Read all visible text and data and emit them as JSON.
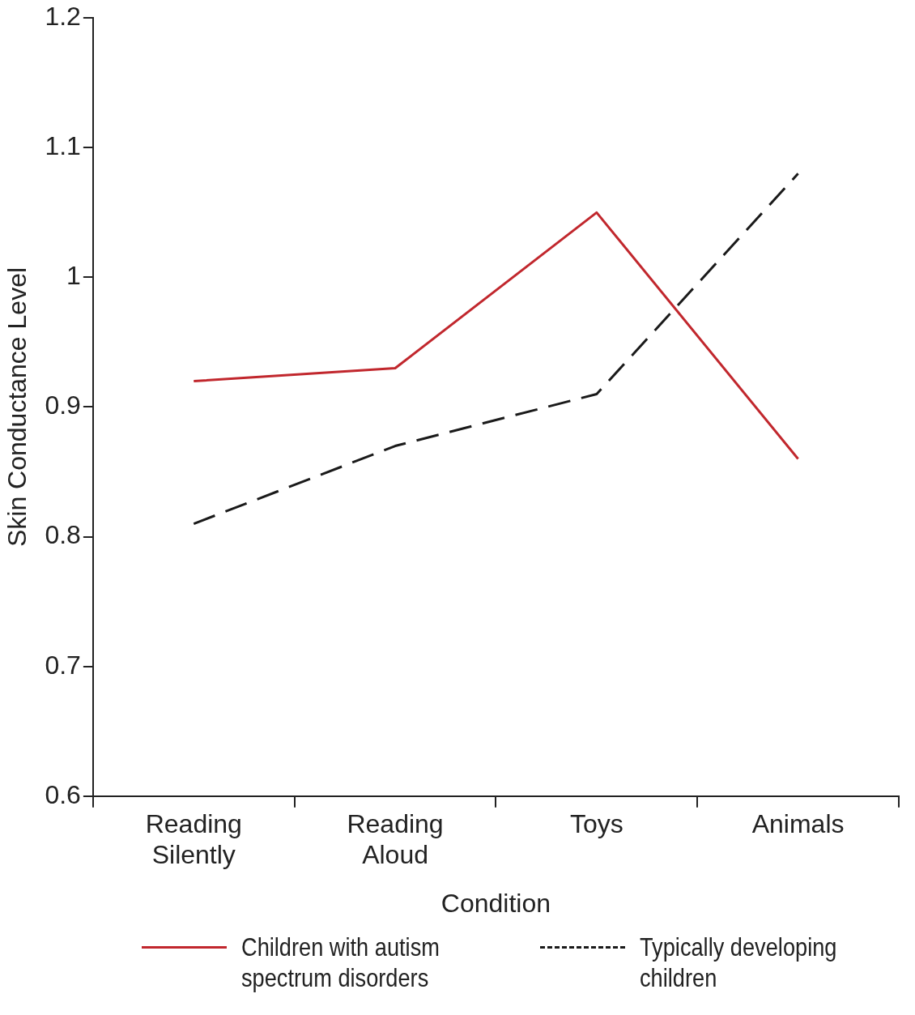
{
  "chart_data": {
    "type": "line",
    "xlabel": "Condition",
    "ylabel": "Skin Conductance Level",
    "categories": [
      "Reading Silently",
      "Reading Aloud",
      "Toys",
      "Animals"
    ],
    "series": [
      {
        "name": "Children with autism spectrum disorders",
        "color": "#c1272d",
        "values": [
          0.92,
          0.93,
          1.05,
          0.86
        ],
        "line_style": "solid"
      },
      {
        "name": "Typically developing children",
        "color": "#1a1a1a",
        "values": [
          0.81,
          0.87,
          0.91,
          1.08
        ],
        "line_style": "dashed"
      }
    ],
    "ylim": [
      0.6,
      1.2
    ],
    "yticks": [
      0.6,
      0.7,
      0.8,
      0.9,
      1,
      1.1,
      1.2
    ],
    "grid": false,
    "legend": "bottom",
    "marker": "none"
  }
}
